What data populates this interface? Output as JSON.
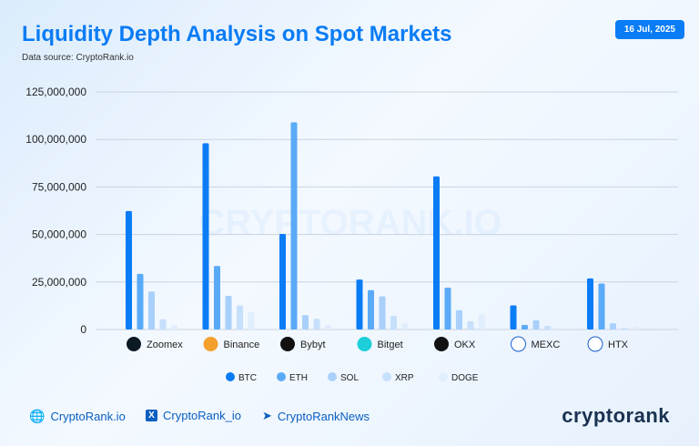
{
  "header": {
    "title": "Liquidity Depth Analysis on Spot Markets",
    "subtitle": "Data source: CryptoRank.io",
    "date": "16 Jul, 2025"
  },
  "watermark": "CRYPTORANK.IO",
  "chart_data": {
    "type": "bar",
    "title": "Liquidity Depth Analysis on Spot Markets",
    "categories": [
      "Zoomex",
      "Binance",
      "Bybyt",
      "Bitget",
      "OKX",
      "MEXC",
      "HTX"
    ],
    "category_icons": [
      "zoomex-logo-icon",
      "binance-logo-icon",
      "bybit-logo-icon",
      "bitget-logo-icon",
      "okx-logo-icon",
      "mexc-logo-icon",
      "htx-logo-icon"
    ],
    "series": [
      {
        "name": "BTC",
        "color": "#0a7cf5",
        "values": [
          62300000,
          98000000,
          50300000,
          26300000,
          80600000,
          12700000,
          26900000
        ]
      },
      {
        "name": "ETH",
        "color": "#5aaaf7",
        "values": [
          29300000,
          33400000,
          109000000,
          20700000,
          22000000,
          2400000,
          24200000
        ]
      },
      {
        "name": "SOL",
        "color": "#a9d0fb",
        "values": [
          20000000,
          17700000,
          7600000,
          17500000,
          10200000,
          4800000,
          3300000
        ]
      },
      {
        "name": "XRP",
        "color": "#c6e0fc",
        "values": [
          5400000,
          12700000,
          5700000,
          7200000,
          4300000,
          1900000,
          800000
        ]
      },
      {
        "name": "DOGE",
        "color": "#e1eefd",
        "values": [
          2200000,
          9200000,
          2400000,
          3300000,
          8100000,
          1000000,
          1600000
        ]
      }
    ],
    "yticks": [
      "0",
      "25,000,000",
      "50,000,000",
      "75,000,000",
      "100,000,000",
      "125,000,000"
    ],
    "ytick_values": [
      0,
      25000000,
      50000000,
      75000000,
      100000000,
      125000000
    ],
    "ylim": [
      0,
      125000000
    ],
    "grid": true,
    "legend": "bottom-center"
  },
  "footer": {
    "website": "CryptoRank.io",
    "x_handle": "CryptoRank_io",
    "telegram": "CryptoRankNews",
    "brand": "cryptorank"
  }
}
